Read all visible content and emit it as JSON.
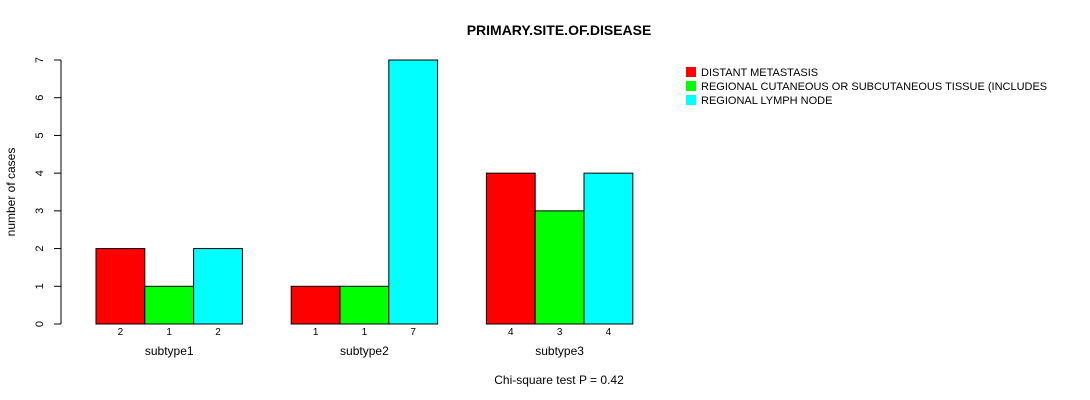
{
  "chart_data": {
    "type": "bar",
    "title": "PRIMARY.SITE.OF.DISEASE",
    "xlabel": "Chi-square test P = 0.42",
    "ylabel": "number of cases",
    "ylim": [
      0,
      7
    ],
    "yticks": [
      "0",
      "1",
      "2",
      "3",
      "4",
      "5",
      "6",
      "7"
    ],
    "categories": [
      "subtype1",
      "subtype2",
      "subtype3"
    ],
    "series": [
      {
        "name": "DISTANT METASTASIS",
        "color": "#ff0000",
        "values": [
          2,
          1,
          4
        ],
        "labels": [
          "2",
          "1",
          "4"
        ]
      },
      {
        "name": "REGIONAL CUTANEOUS OR SUBCUTANEOUS TISSUE (INCLUDES",
        "color": "#00ff00",
        "values": [
          1,
          1,
          3
        ],
        "labels": [
          "1",
          "1",
          "3"
        ]
      },
      {
        "name": "REGIONAL LYMPH NODE",
        "color": "#00ffff",
        "values": [
          2,
          7,
          4
        ],
        "labels": [
          "2",
          "7",
          "4"
        ]
      }
    ],
    "legend_position": "top-right"
  }
}
